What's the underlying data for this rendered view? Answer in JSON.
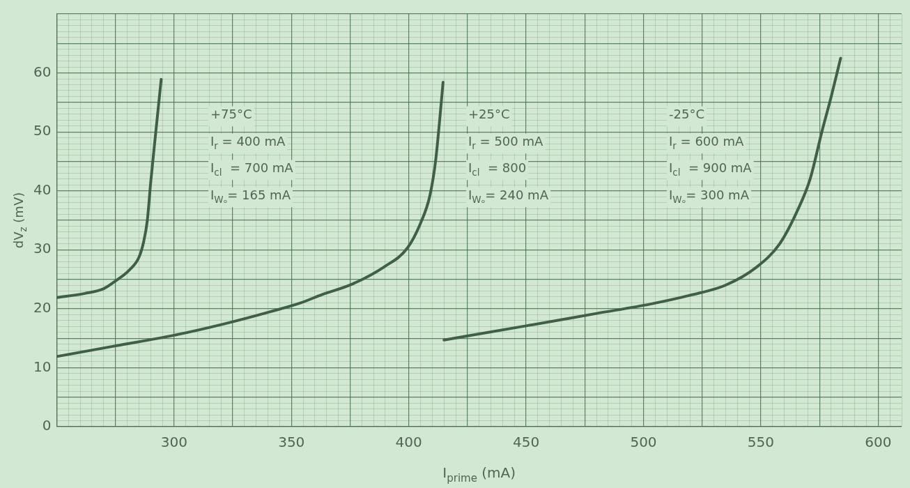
{
  "chart_data": {
    "type": "line",
    "xlabel": "I$_{prime}$ (mA)",
    "ylabel": "dV$_{z}$ (mV)",
    "xlim": [
      250,
      610
    ],
    "xticks": [
      {
        "value": 250,
        "label": null
      },
      {
        "value": 255,
        "label": null
      },
      {
        "value": 260,
        "label": null
      },
      {
        "value": 265,
        "label": null
      },
      {
        "value": 270,
        "label": null
      },
      {
        "value": 275,
        "label": null
      },
      {
        "value": 280,
        "label": null
      },
      {
        "value": 285,
        "label": null
      },
      {
        "value": 290,
        "label": null
      },
      {
        "value": 295,
        "label": null
      },
      300,
      {
        "value": 305,
        "label": null
      },
      {
        "value": 310,
        "label": null
      },
      {
        "value": 315,
        "label": null
      },
      {
        "value": 320,
        "label": null
      },
      {
        "value": 325,
        "label": null
      },
      {
        "value": 330,
        "label": null
      },
      {
        "value": 335,
        "label": null
      },
      {
        "value": 340,
        "label": null
      },
      {
        "value": 345,
        "label": null
      },
      350,
      {
        "value": 355,
        "label": null
      },
      {
        "value": 360,
        "label": null
      },
      {
        "value": 365,
        "label": null
      },
      {
        "value": 370,
        "label": null
      },
      {
        "value": 375,
        "label": null
      },
      {
        "value": 380,
        "label": null
      },
      {
        "value": 385,
        "label": null
      },
      {
        "value": 390,
        "label": null
      },
      {
        "value": 395,
        "label": null
      },
      400,
      {
        "value": 405,
        "label": null
      },
      {
        "value": 410,
        "label": null
      },
      {
        "value": 415,
        "label": null
      },
      {
        "value": 420,
        "label": null
      },
      {
        "value": 425,
        "label": null
      },
      {
        "value": 430,
        "label": null
      },
      {
        "value": 435,
        "label": null
      },
      {
        "value": 440,
        "label": null
      },
      {
        "value": 445,
        "label": null
      },
      450,
      {
        "value": 455,
        "label": null
      },
      {
        "value": 460,
        "label": null
      },
      {
        "value": 465,
        "label": null
      },
      {
        "value": 470,
        "label": null
      },
      {
        "value": 475,
        "label": null
      },
      {
        "value": 480,
        "label": null
      },
      {
        "value": 485,
        "label": null
      },
      {
        "value": 490,
        "label": null
      },
      {
        "value": 495,
        "label": null
      },
      500,
      {
        "value": 505,
        "label": null
      },
      {
        "value": 510,
        "label": null
      },
      {
        "value": 515,
        "label": null
      },
      {
        "value": 520,
        "label": null
      },
      {
        "value": 525,
        "label": null
      },
      {
        "value": 530,
        "label": null
      },
      {
        "value": 535,
        "label": null
      },
      {
        "value": 540,
        "label": null
      },
      {
        "value": 545,
        "label": null
      },
      550,
      {
        "value": 555,
        "label": null
      },
      {
        "value": 560,
        "label": null
      },
      {
        "value": 565,
        "label": null
      },
      {
        "value": 570,
        "label": null
      },
      {
        "value": 575,
        "label": null
      },
      {
        "value": 580,
        "label": null
      },
      {
        "value": 585,
        "label": null
      },
      {
        "value": 590,
        "label": null
      },
      {
        "value": 595,
        "label": null
      },
      600,
      {
        "value": 605,
        "label": null
      },
      {
        "value": 610,
        "label": null
      }
    ],
    "ylim": [
      0,
      70
    ],
    "yticks": [
      0,
      {
        "value": 1,
        "label": null
      },
      {
        "value": 2,
        "label": null
      },
      {
        "value": 3,
        "label": null
      },
      {
        "value": 4,
        "label": null
      },
      {
        "value": 5,
        "label": null
      },
      {
        "value": 6,
        "label": null
      },
      {
        "value": 7,
        "label": null
      },
      {
        "value": 8,
        "label": null
      },
      {
        "value": 9,
        "label": null
      },
      10,
      {
        "value": 11,
        "label": null
      },
      {
        "value": 12,
        "label": null
      },
      {
        "value": 13,
        "label": null
      },
      {
        "value": 14,
        "label": null
      },
      {
        "value": 15,
        "label": null
      },
      {
        "value": 16,
        "label": null
      },
      {
        "value": 17,
        "label": null
      },
      {
        "value": 18,
        "label": null
      },
      {
        "value": 19,
        "label": null
      },
      20,
      {
        "value": 21,
        "label": null
      },
      {
        "value": 22,
        "label": null
      },
      {
        "value": 23,
        "label": null
      },
      {
        "value": 24,
        "label": null
      },
      {
        "value": 25,
        "label": null
      },
      {
        "value": 26,
        "label": null
      },
      {
        "value": 27,
        "label": null
      },
      {
        "value": 28,
        "label": null
      },
      {
        "value": 29,
        "label": null
      },
      30,
      {
        "value": 31,
        "label": null
      },
      {
        "value": 32,
        "label": null
      },
      {
        "value": 33,
        "label": null
      },
      {
        "value": 34,
        "label": null
      },
      {
        "value": 35,
        "label": null
      },
      {
        "value": 36,
        "label": null
      },
      {
        "value": 37,
        "label": null
      },
      {
        "value": 38,
        "label": null
      },
      {
        "value": 39,
        "label": null
      },
      40,
      {
        "value": 41,
        "label": null
      },
      {
        "value": 42,
        "label": null
      },
      {
        "value": 43,
        "label": null
      },
      {
        "value": 44,
        "label": null
      },
      {
        "value": 45,
        "label": null
      },
      {
        "value": 46,
        "label": null
      },
      {
        "value": 47,
        "label": null
      },
      {
        "value": 48,
        "label": null
      },
      {
        "value": 49,
        "label": null
      },
      50,
      {
        "value": 51,
        "label": null
      },
      {
        "value": 52,
        "label": null
      },
      {
        "value": 53,
        "label": null
      },
      {
        "value": 54,
        "label": null
      },
      {
        "value": 55,
        "label": null
      },
      {
        "value": 56,
        "label": null
      },
      {
        "value": 57,
        "label": null
      },
      {
        "value": 58,
        "label": null
      },
      {
        "value": 59,
        "label": null
      },
      60,
      {
        "value": 61,
        "label": null
      },
      {
        "value": 62,
        "label": null
      },
      {
        "value": 63,
        "label": null
      },
      {
        "value": 64,
        "label": null
      },
      {
        "value": 65,
        "label": null
      },
      {
        "value": 66,
        "label": null
      },
      {
        "value": 67,
        "label": null
      },
      {
        "value": 68,
        "label": null
      },
      {
        "value": 69,
        "label": null
      },
      {
        "value": 70,
        "label": null
      }
    ],
    "grid": true,
    "legend": false,
    "marker": "none",
    "line_style": "solid",
    "series": [
      {
        "color": "#3f5f49",
        "x": [
          250,
          262,
          270,
          275,
          281,
          285,
          287,
          288.6,
          290,
          292,
          294.5
        ],
        "values": [
          21.9,
          22.6,
          23.4,
          24.7,
          26.6,
          28.7,
          31.3,
          35,
          41.3,
          49.2,
          58.9
        ]
      },
      {
        "color": "#3f5f49",
        "x": [
          250,
          275,
          300,
          321,
          341,
          354,
          363,
          376,
          389.5,
          399.4,
          405,
          409,
          411.4,
          413,
          414.6
        ],
        "values": [
          11.9,
          13.7,
          15.5,
          17.4,
          19.5,
          21,
          22.4,
          24.2,
          27.1,
          30.3,
          34.5,
          39.2,
          45,
          51.3,
          58.4
        ]
      },
      {
        "color": "#3f5f49",
        "x": [
          415,
          450,
          480,
          503,
          520,
          535,
          548,
          558,
          566,
          571,
          576,
          580,
          584
        ],
        "values": [
          14.7,
          17.1,
          19.2,
          20.8,
          22.3,
          24,
          27,
          31,
          37,
          42,
          50,
          56,
          62.5
        ]
      }
    ],
    "annotations": [
      "+75°C",
      "I$_{r}$ = 400 mA",
      "I$_{cl}$  = 700 mA",
      "I$_{Wₒ}$= 165 mA",
      "+25°C",
      "I$_{r}$ = 500 mA",
      "I$_{cl}$  = 800",
      "I$_{Wₒ}$= 240 mA",
      "-25°C",
      "I$_{r}$ = 600 mA",
      "I$_{cl}$  = 900 mA",
      "I$_{Wₒ}$= 300 mA"
    ]
  }
}
